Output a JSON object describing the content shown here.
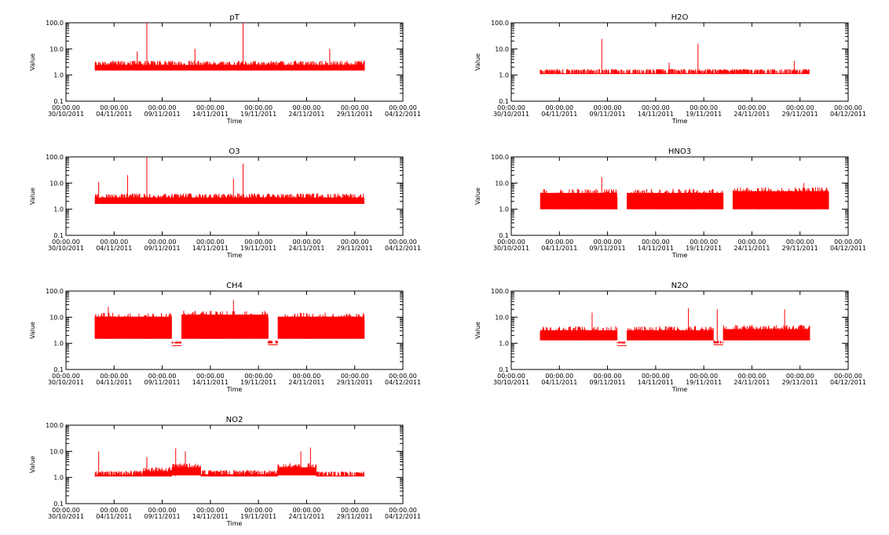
{
  "chart_data": [
    {
      "type": "line",
      "title": "pT",
      "xlabel": "Time",
      "ylabel": "Value",
      "yscale": "log",
      "ylim": [
        0.1,
        100.0
      ],
      "yticks": [
        "0.1",
        "1.0",
        "10.0",
        "100.0"
      ],
      "xlim": [
        "2011-10-30 00:00",
        "2011-12-04 00:00"
      ],
      "xticks": [
        {
          "time": "00:00.00",
          "date": "30/10/2011"
        },
        {
          "time": "00:00.00",
          "date": "04/11/2011"
        },
        {
          "time": "00:00.00",
          "date": "09/11/2011"
        },
        {
          "time": "00:00.00",
          "date": "14/11/2011"
        },
        {
          "time": "00:00.00",
          "date": "19/11/2011"
        },
        {
          "time": "00:00.00",
          "date": "24/11/2011"
        },
        {
          "time": "00:00.00",
          "date": "29/11/2011"
        },
        {
          "time": "00:00.00",
          "date": "04/12/2011"
        }
      ],
      "grid": false,
      "color": "#ff0000",
      "data_span": [
        "2011-11-02",
        "2011-11-30"
      ],
      "segments": [
        {
          "x": [
            "2011-11-02",
            "2011-11-30"
          ],
          "low": 1.5,
          "high": 3.5
        }
      ],
      "spikes": [
        {
          "x": "2011-11-07",
          "y": 100.0
        },
        {
          "x": "2011-11-17",
          "y": 100.0
        },
        {
          "x": "2011-11-06",
          "y": 8.0
        },
        {
          "x": "2011-11-12",
          "y": 10.0
        },
        {
          "x": "2011-11-26",
          "y": 10.0
        }
      ]
    },
    {
      "type": "line",
      "title": "H2O",
      "xlabel": "Time",
      "ylabel": "Value",
      "yscale": "log",
      "ylim": [
        0.1,
        100.0
      ],
      "yticks": [
        "0.1",
        "1.0",
        "10.0",
        "100.0"
      ],
      "xlim": [
        "2011-10-30 00:00",
        "2011-12-04 00:00"
      ],
      "xticks": [
        {
          "time": "00:00.00",
          "date": "30/10/2011"
        },
        {
          "time": "00:00.00",
          "date": "04/11/2011"
        },
        {
          "time": "00:00.00",
          "date": "09/11/2011"
        },
        {
          "time": "00:00.00",
          "date": "14/11/2011"
        },
        {
          "time": "00:00.00",
          "date": "19/11/2011"
        },
        {
          "time": "00:00.00",
          "date": "24/11/2011"
        },
        {
          "time": "00:00.00",
          "date": "29/11/2011"
        },
        {
          "time": "00:00.00",
          "date": "04/12/2011"
        }
      ],
      "grid": false,
      "color": "#ff0000",
      "data_span": [
        "2011-11-02",
        "2011-11-30"
      ],
      "segments": [
        {
          "x": [
            "2011-11-02",
            "2011-11-30"
          ],
          "low": 1.1,
          "high": 1.7
        }
      ],
      "spikes": [
        {
          "x": "2011-11-08",
          "y": 24.0
        },
        {
          "x": "2011-11-18",
          "y": 16.0
        },
        {
          "x": "2011-11-15",
          "y": 3.0
        },
        {
          "x": "2011-11-28",
          "y": 3.5
        }
      ]
    },
    {
      "type": "line",
      "title": "O3",
      "xlabel": "Time",
      "ylabel": "Value",
      "yscale": "log",
      "ylim": [
        0.1,
        100.0
      ],
      "yticks": [
        "0.1",
        "1.0",
        "10.0",
        "100.0"
      ],
      "xlim": [
        "2011-10-30 00:00",
        "2011-12-04 00:00"
      ],
      "xticks": [
        {
          "time": "00:00.00",
          "date": "30/10/2011"
        },
        {
          "time": "00:00.00",
          "date": "04/11/2011"
        },
        {
          "time": "00:00.00",
          "date": "09/11/2011"
        },
        {
          "time": "00:00.00",
          "date": "14/11/2011"
        },
        {
          "time": "00:00.00",
          "date": "19/11/2011"
        },
        {
          "time": "00:00.00",
          "date": "24/11/2011"
        },
        {
          "time": "00:00.00",
          "date": "29/11/2011"
        },
        {
          "time": "00:00.00",
          "date": "04/12/2011"
        }
      ],
      "grid": false,
      "color": "#ff0000",
      "data_span": [
        "2011-11-02",
        "2011-11-30"
      ],
      "segments": [
        {
          "x": [
            "2011-11-02",
            "2011-11-30"
          ],
          "low": 1.6,
          "high": 4.0
        }
      ],
      "spikes": [
        {
          "x": "2011-11-07",
          "y": 100.0
        },
        {
          "x": "2011-11-17",
          "y": 55.0
        },
        {
          "x": "2011-11-02",
          "y": 11.0
        },
        {
          "x": "2011-11-05",
          "y": 20.0
        },
        {
          "x": "2011-11-16",
          "y": 15.0
        }
      ]
    },
    {
      "type": "line",
      "title": "HNO3",
      "xlabel": "Time",
      "ylabel": "Value",
      "yscale": "log",
      "ylim": [
        0.1,
        100.0
      ],
      "yticks": [
        "0.1",
        "1.0",
        "10.0",
        "100.0"
      ],
      "xlim": [
        "2011-10-30 00:00",
        "2011-12-04 00:00"
      ],
      "xticks": [
        {
          "time": "00:00.00",
          "date": "30/10/2011"
        },
        {
          "time": "00:00.00",
          "date": "04/11/2011"
        },
        {
          "time": "00:00.00",
          "date": "09/11/2011"
        },
        {
          "time": "00:00.00",
          "date": "14/11/2011"
        },
        {
          "time": "00:00.00",
          "date": "19/11/2011"
        },
        {
          "time": "00:00.00",
          "date": "24/11/2011"
        },
        {
          "time": "00:00.00",
          "date": "29/11/2011"
        },
        {
          "time": "00:00.00",
          "date": "04/12/2011"
        }
      ],
      "grid": false,
      "color": "#ff0000",
      "data_span": [
        "2011-11-02",
        "2011-12-02"
      ],
      "segments": [
        {
          "x": [
            "2011-11-02",
            "2011-11-10"
          ],
          "low": 1.0,
          "high": 6.0
        },
        {
          "x": [
            "2011-11-11",
            "2011-11-21"
          ],
          "low": 1.0,
          "high": 6.0
        },
        {
          "x": [
            "2011-11-22",
            "2011-12-02"
          ],
          "low": 1.0,
          "high": 7.0
        }
      ],
      "spikes": [
        {
          "x": "2011-11-08",
          "y": 17.0
        },
        {
          "x": "2011-11-29",
          "y": 10.0
        }
      ]
    },
    {
      "type": "line",
      "title": "CH4",
      "xlabel": "Time",
      "ylabel": "Value",
      "yscale": "log",
      "ylim": [
        0.1,
        100.0
      ],
      "yticks": [
        "0.1",
        "1.0",
        "10.0",
        "100.0"
      ],
      "xlim": [
        "2011-10-30 00:00",
        "2011-12-04 00:00"
      ],
      "xticks": [
        {
          "time": "00:00.00",
          "date": "30/10/2011"
        },
        {
          "time": "00:00.00",
          "date": "04/11/2011"
        },
        {
          "time": "00:00.00",
          "date": "09/11/2011"
        },
        {
          "time": "00:00.00",
          "date": "14/11/2011"
        },
        {
          "time": "00:00.00",
          "date": "19/11/2011"
        },
        {
          "time": "00:00.00",
          "date": "24/11/2011"
        },
        {
          "time": "00:00.00",
          "date": "29/11/2011"
        },
        {
          "time": "00:00.00",
          "date": "04/12/2011"
        }
      ],
      "grid": false,
      "color": "#ff0000",
      "data_span": [
        "2011-11-02",
        "2011-11-30"
      ],
      "segments": [
        {
          "x": [
            "2011-11-02",
            "2011-11-10"
          ],
          "low": 1.5,
          "high": 15.0
        },
        {
          "x": [
            "2011-11-10",
            "2011-11-11"
          ],
          "low": 1.0,
          "high": 1.2
        },
        {
          "x": [
            "2011-11-11",
            "2011-11-20"
          ],
          "low": 1.5,
          "high": 18.0
        },
        {
          "x": [
            "2011-11-20",
            "2011-11-21"
          ],
          "low": 1.0,
          "high": 1.3
        },
        {
          "x": [
            "2011-11-21",
            "2011-11-30"
          ],
          "low": 1.5,
          "high": 15.0
        }
      ],
      "spikes": [
        {
          "x": "2011-11-16",
          "y": 45.0
        },
        {
          "x": "2011-11-03",
          "y": 25.0
        }
      ]
    },
    {
      "type": "line",
      "title": "N2O",
      "xlabel": "Time",
      "ylabel": "Value",
      "yscale": "log",
      "ylim": [
        0.1,
        100.0
      ],
      "yticks": [
        "0.1",
        "1.0",
        "10.0",
        "100.0"
      ],
      "xlim": [
        "2011-10-30 00:00",
        "2011-12-04 00:00"
      ],
      "xticks": [
        {
          "time": "00:00.00",
          "date": "30/10/2011"
        },
        {
          "time": "00:00.00",
          "date": "04/11/2011"
        },
        {
          "time": "00:00.00",
          "date": "09/11/2011"
        },
        {
          "time": "00:00.00",
          "date": "14/11/2011"
        },
        {
          "time": "00:00.00",
          "date": "19/11/2011"
        },
        {
          "time": "00:00.00",
          "date": "24/11/2011"
        },
        {
          "time": "00:00.00",
          "date": "29/11/2011"
        },
        {
          "time": "00:00.00",
          "date": "04/12/2011"
        }
      ],
      "grid": false,
      "color": "#ff0000",
      "data_span": [
        "2011-11-02",
        "2011-11-30"
      ],
      "segments": [
        {
          "x": [
            "2011-11-02",
            "2011-11-10"
          ],
          "low": 1.3,
          "high": 4.5
        },
        {
          "x": [
            "2011-11-10",
            "2011-11-11"
          ],
          "low": 1.0,
          "high": 1.2
        },
        {
          "x": [
            "2011-11-11",
            "2011-11-20"
          ],
          "low": 1.3,
          "high": 4.5
        },
        {
          "x": [
            "2011-11-20",
            "2011-11-21"
          ],
          "low": 1.0,
          "high": 1.3
        },
        {
          "x": [
            "2011-11-21",
            "2011-11-30"
          ],
          "low": 1.3,
          "high": 5.0
        }
      ],
      "spikes": [
        {
          "x": "2011-11-07",
          "y": 15.0
        },
        {
          "x": "2011-11-17",
          "y": 22.0
        },
        {
          "x": "2011-11-20",
          "y": 20.0
        },
        {
          "x": "2011-11-27",
          "y": 20.0
        }
      ]
    },
    {
      "type": "line",
      "title": "NO2",
      "xlabel": "Time",
      "ylabel": "Value",
      "yscale": "log",
      "ylim": [
        0.1,
        100.0
      ],
      "yticks": [
        "0.1",
        "1.0",
        "10.0",
        "100.0"
      ],
      "xlim": [
        "2011-10-30 00:00",
        "2011-12-04 00:00"
      ],
      "xticks": [
        {
          "time": "00:00.00",
          "date": "30/10/2011"
        },
        {
          "time": "00:00.00",
          "date": "04/11/2011"
        },
        {
          "time": "00:00.00",
          "date": "09/11/2011"
        },
        {
          "time": "00:00.00",
          "date": "14/11/2011"
        },
        {
          "time": "00:00.00",
          "date": "19/11/2011"
        },
        {
          "time": "00:00.00",
          "date": "24/11/2011"
        },
        {
          "time": "00:00.00",
          "date": "29/11/2011"
        },
        {
          "time": "00:00.00",
          "date": "04/12/2011"
        }
      ],
      "grid": false,
      "color": "#ff0000",
      "data_span": [
        "2011-11-02",
        "2011-11-30"
      ],
      "segments": [
        {
          "x": [
            "2011-11-02",
            "2011-11-07"
          ],
          "low": 1.1,
          "high": 1.8
        },
        {
          "x": [
            "2011-11-07",
            "2011-11-10"
          ],
          "low": 1.1,
          "high": 2.5
        },
        {
          "x": [
            "2011-11-10",
            "2011-11-13"
          ],
          "low": 1.2,
          "high": 3.5
        },
        {
          "x": [
            "2011-11-13",
            "2011-11-21"
          ],
          "low": 1.1,
          "high": 1.9
        },
        {
          "x": [
            "2011-11-21",
            "2011-11-25"
          ],
          "low": 1.2,
          "high": 3.5
        },
        {
          "x": [
            "2011-11-25",
            "2011-11-30"
          ],
          "low": 1.1,
          "high": 1.7
        }
      ],
      "spikes": [
        {
          "x": "2011-11-02",
          "y": 10.0
        },
        {
          "x": "2011-11-07",
          "y": 6.0
        },
        {
          "x": "2011-11-10",
          "y": 13.0
        },
        {
          "x": "2011-11-11",
          "y": 10.0
        },
        {
          "x": "2011-11-23",
          "y": 10.0
        },
        {
          "x": "2011-11-24",
          "y": 14.0
        }
      ]
    }
  ]
}
